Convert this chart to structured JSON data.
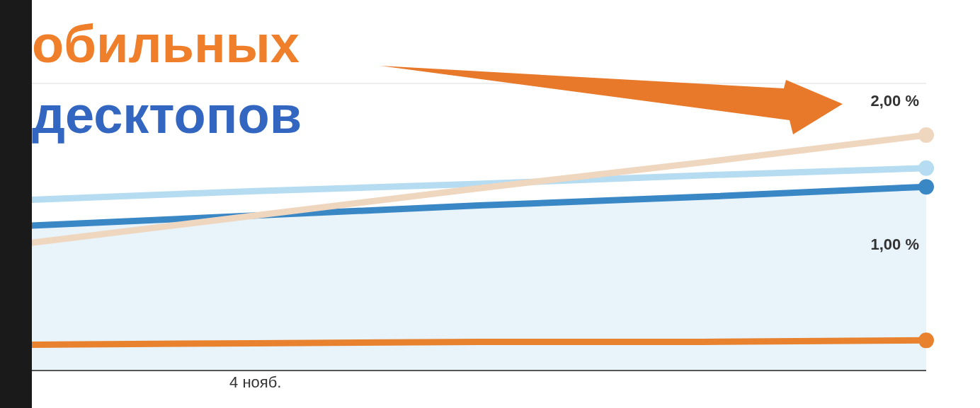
{
  "chart_data": {
    "type": "line",
    "annotations": [
      "обильных",
      "десктопов"
    ],
    "categories": [
      null,
      "4 нояб.",
      null,
      null,
      null
    ],
    "ylim": [
      0,
      2
    ],
    "yticks": [
      {
        "value": 0,
        "label": null
      },
      {
        "value": 1,
        "label": "1,00 %"
      },
      {
        "value": 2,
        "label": "2,00 %"
      }
    ],
    "grid": "y",
    "line_style": "solid",
    "series": [
      {
        "type": "area",
        "color": "#3a87c6",
        "values": [
          1.01,
          1.08,
          1.15,
          1.21,
          1.28
        ]
      },
      {
        "color": "#b5dcf0",
        "values": [
          1.19,
          1.25,
          1.3,
          1.36,
          1.41
        ]
      },
      {
        "color": "#efd6bf",
        "values": [
          0.89,
          1.08,
          1.27,
          1.45,
          1.64
        ]
      },
      {
        "color": "#e8822e",
        "values": [
          0.18,
          0.19,
          0.2,
          0.2,
          0.21
        ]
      }
    ]
  }
}
